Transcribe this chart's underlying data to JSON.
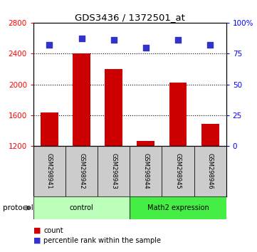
{
  "title": "GDS3436 / 1372501_at",
  "samples": [
    "GSM298941",
    "GSM298942",
    "GSM298943",
    "GSM298944",
    "GSM298945",
    "GSM298946"
  ],
  "counts": [
    1640,
    2400,
    2200,
    1270,
    2020,
    1490
  ],
  "percentile_ranks": [
    82,
    87,
    86,
    80,
    86,
    82
  ],
  "ylim_left": [
    1200,
    2800
  ],
  "ylim_right": [
    0,
    100
  ],
  "yticks_left": [
    1200,
    1600,
    2000,
    2400,
    2800
  ],
  "yticks_right": [
    0,
    25,
    50,
    75,
    100
  ],
  "yticklabels_right": [
    "0",
    "25",
    "50",
    "75",
    "100%"
  ],
  "bar_color": "#cc0000",
  "dot_color": "#3333cc",
  "bg_color": "#ffffff",
  "group_colors": [
    "#bbffbb",
    "#44ee44"
  ],
  "group_labels": [
    "control",
    "Math2 expression"
  ],
  "group_ranges": [
    [
      0,
      2
    ],
    [
      3,
      5
    ]
  ],
  "protocol_label": "protocol",
  "legend_count_label": "count",
  "legend_pct_label": "percentile rank within the sample",
  "bar_width": 0.55,
  "dot_size": 40
}
